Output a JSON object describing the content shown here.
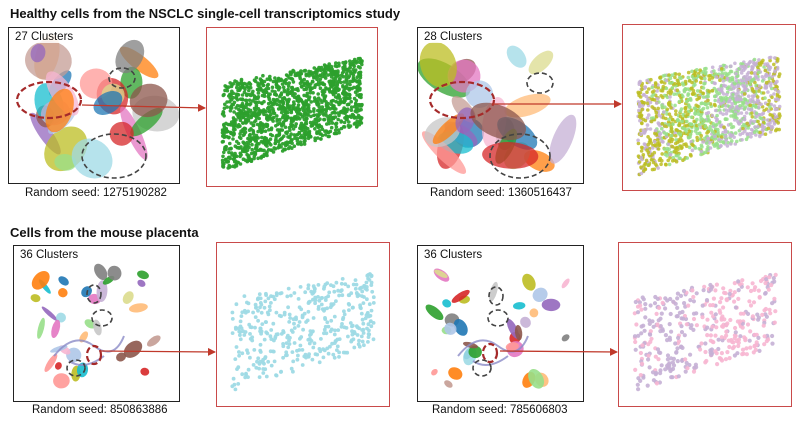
{
  "sections": [
    {
      "title": "Healthy cells from the NSCLC single-cell transcriptomics study",
      "panels": [
        {
          "cluster_label": "27 Clusters",
          "seed_label": "Random seed: 1275190282",
          "zoom_colors": [
            "#2ca02c"
          ]
        },
        {
          "cluster_label": "28 Clusters",
          "seed_label": "Random seed: 1360516437",
          "zoom_colors": [
            "#bcbd22",
            "#98df8a",
            "#c5b0d5"
          ]
        }
      ]
    },
    {
      "title": "Cells from the mouse placenta",
      "panels": [
        {
          "cluster_label": "36 Clusters",
          "seed_label": "Random seed: 850863886",
          "zoom_colors": [
            "#9edae5"
          ]
        },
        {
          "cluster_label": "36 Clusters",
          "seed_label": "Random seed: 785606803",
          "zoom_colors": [
            "#c5b0d5",
            "#f7b6d2"
          ]
        }
      ]
    }
  ],
  "colors": {
    "highlight": "#a52a2a",
    "arrow": "#c0392b",
    "zoom_border": "#c94a4a",
    "palette": [
      "#1f77b4",
      "#ff7f0e",
      "#2ca02c",
      "#d62728",
      "#9467bd",
      "#8c564b",
      "#e377c2",
      "#7f7f7f",
      "#bcbd22",
      "#17becf",
      "#aec7e8",
      "#ffbb78",
      "#98df8a",
      "#ff9896",
      "#c5b0d5",
      "#c49c94",
      "#f7b6d2",
      "#c7c7c7",
      "#dbdb8d",
      "#9edae5"
    ]
  }
}
